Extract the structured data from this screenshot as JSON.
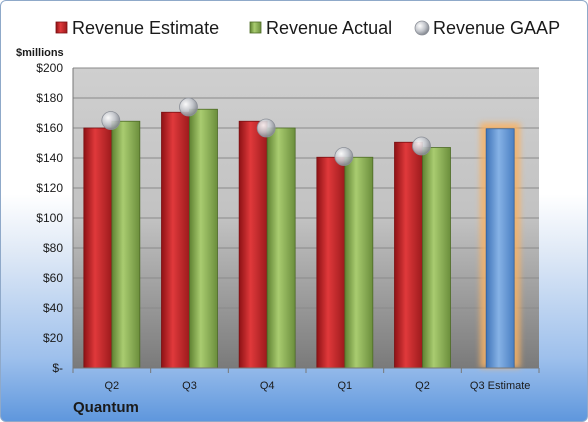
{
  "chart_data": {
    "type": "bar",
    "ylabel": "$millions",
    "categories": [
      "Q2",
      "Q3",
      "Q4",
      "Q1",
      "Q2",
      "Q3 Estimate"
    ],
    "series": [
      {
        "name": "Revenue Estimate",
        "color": "#c0292b",
        "values": [
          160,
          170.5,
          164.5,
          140.5,
          150.5,
          null
        ]
      },
      {
        "name": "Revenue Actual",
        "color": "#8db356",
        "values": [
          164.5,
          172.5,
          160,
          140.5,
          147,
          null
        ]
      },
      {
        "name": "Revenue GAAP",
        "color": "#b8bcc4",
        "type": "marker",
        "values": [
          165,
          174,
          160,
          141,
          148,
          null
        ]
      },
      {
        "name": "",
        "color": "#6a9bd6",
        "highlight": "#f7b266",
        "values": [
          null,
          null,
          null,
          null,
          null,
          159.5
        ]
      }
    ],
    "ylim": [
      0,
      200
    ],
    "yticks": [
      0,
      20,
      40,
      60,
      80,
      100,
      120,
      140,
      160,
      180,
      200
    ],
    "ytick_labels": [
      "$-",
      "$20",
      "$40",
      "$60",
      "$80",
      "$100",
      "$120",
      "$140",
      "$160",
      "$180",
      "$200"
    ],
    "legend_position": "top",
    "grid": true
  },
  "company": "Quantum"
}
